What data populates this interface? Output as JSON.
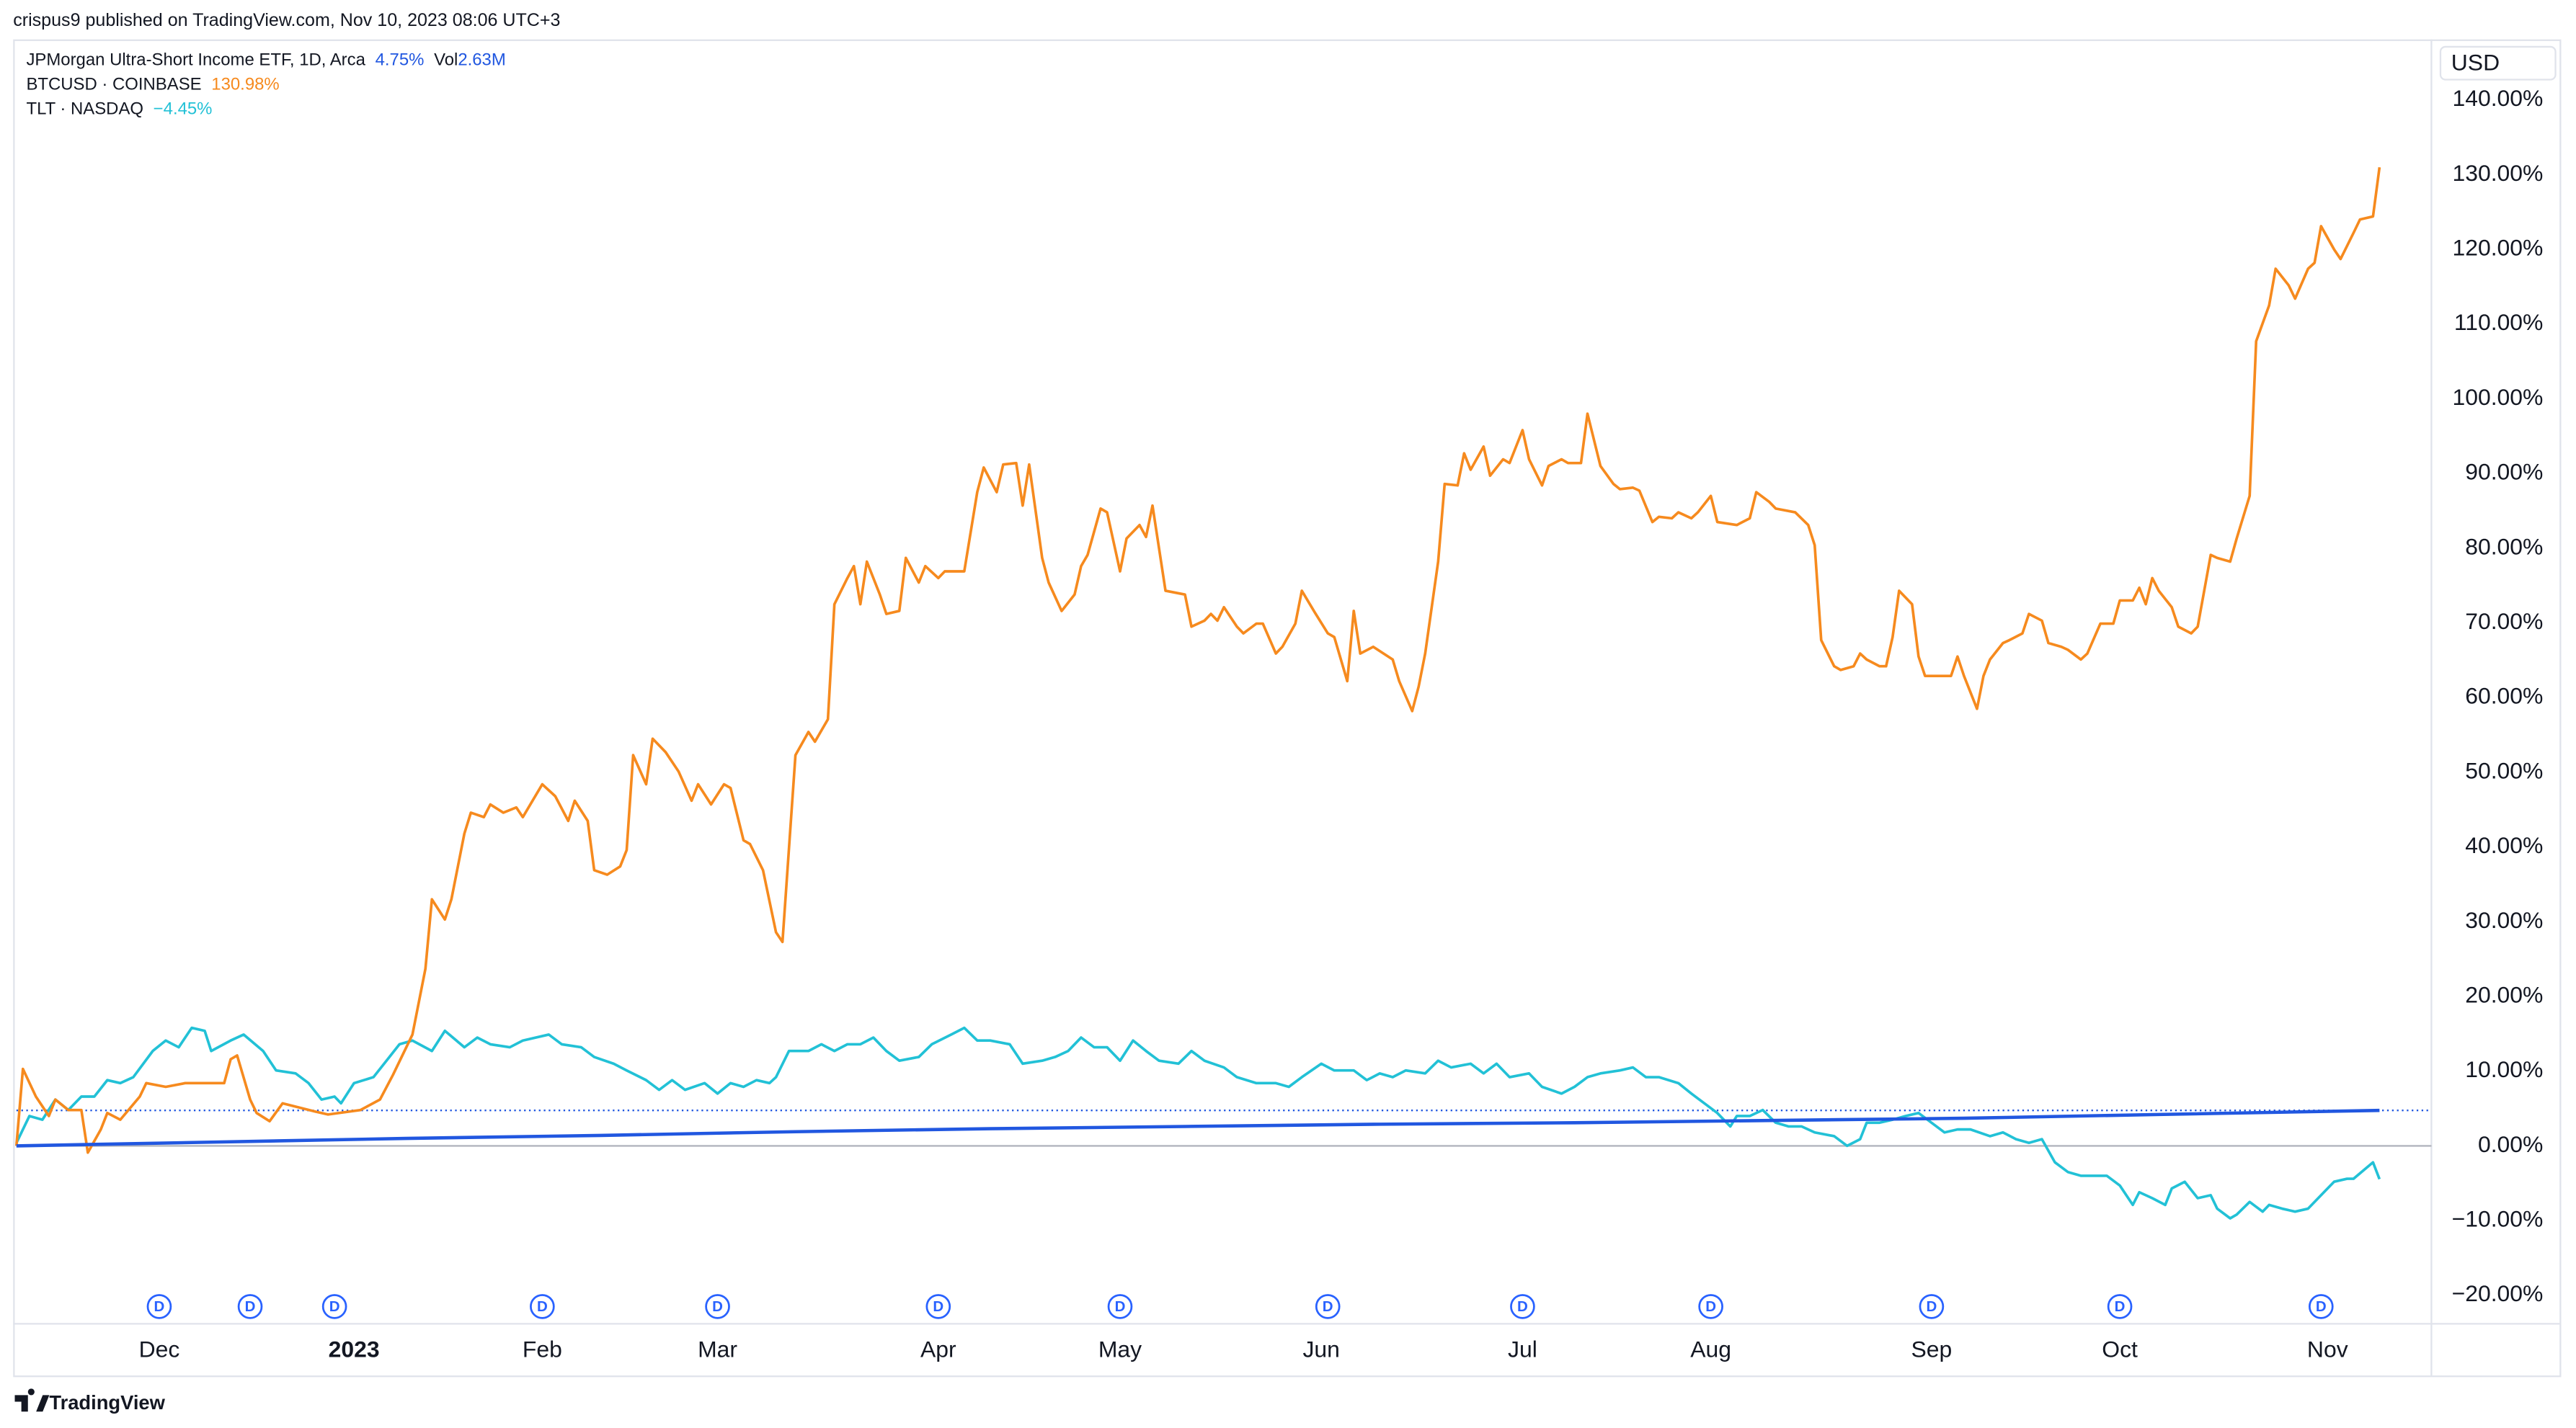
{
  "header": "crispus9 published on TradingView.com, Nov 10, 2023 08:06 UTC+3",
  "footer": "TradingView",
  "chart_data": {
    "type": "line",
    "currency": "USD",
    "grid": false,
    "baseline": 0,
    "xlim": [
      0,
      372
    ],
    "xticks": [
      {
        "value": 22,
        "label": "Dec"
      },
      {
        "value": 52,
        "label": "2023"
      },
      {
        "value": 81,
        "label": "Feb"
      },
      {
        "value": 108,
        "label": "Mar"
      },
      {
        "value": 142,
        "label": "Apr"
      },
      {
        "value": 170,
        "label": "May"
      },
      {
        "value": 201,
        "label": "Jun"
      },
      {
        "value": 232,
        "label": "Jul"
      },
      {
        "value": 261,
        "label": "Aug"
      },
      {
        "value": 295,
        "label": "Sep"
      },
      {
        "value": 324,
        "label": "Oct"
      },
      {
        "value": 356,
        "label": "Nov"
      }
    ],
    "ylim": [
      -23.7,
      148.1
    ],
    "yticks": [
      {
        "value": -20,
        "label": "−20.00%"
      },
      {
        "value": -10,
        "label": "−10.00%"
      },
      {
        "value": 0,
        "label": "0.00%"
      },
      {
        "value": 10,
        "label": "10.00%"
      },
      {
        "value": 20,
        "label": "20.00%"
      },
      {
        "value": 30,
        "label": "30.00%"
      },
      {
        "value": 40,
        "label": "40.00%"
      },
      {
        "value": 50,
        "label": "50.00%"
      },
      {
        "value": 60,
        "label": "60.00%"
      },
      {
        "value": 70,
        "label": "70.00%"
      },
      {
        "value": 80,
        "label": "80.00%"
      },
      {
        "value": 90,
        "label": "90.00%"
      },
      {
        "value": 100,
        "label": "100.00%"
      },
      {
        "value": 110,
        "label": "110.00%"
      },
      {
        "value": 120,
        "label": "120.00%"
      },
      {
        "value": 130,
        "label": "130.00%"
      },
      {
        "value": 140,
        "label": "140.00%"
      }
    ],
    "series": [
      {
        "name": "JPMorgan Ultra-Short Income ETF, 1D, Arca",
        "color": "#2157e0",
        "legend_value": "4.75%",
        "volume_label": "Vol",
        "volume": "2.63M",
        "x": [
          0,
          30,
          60,
          90,
          120,
          150,
          180,
          210,
          240,
          270,
          300,
          330,
          364
        ],
        "values": [
          0,
          0.5,
          1.0,
          1.4,
          1.9,
          2.3,
          2.6,
          2.9,
          3.1,
          3.4,
          3.7,
          4.2,
          4.75
        ]
      },
      {
        "name": "BTCUSD · COINBASE",
        "color": "#f68a1e",
        "legend_value": "130.98%",
        "x": [
          0,
          1,
          3,
          5,
          6,
          8,
          10,
          11,
          13,
          14,
          16,
          19,
          20,
          23,
          26,
          29,
          32,
          33,
          34,
          36,
          37,
          39,
          41,
          46,
          48,
          53,
          56,
          58,
          61,
          63,
          64,
          66,
          67,
          69,
          70,
          72,
          73,
          75,
          77,
          78,
          81,
          83,
          85,
          86,
          88,
          89,
          91,
          93,
          94,
          95,
          97,
          98,
          100,
          102,
          104,
          105,
          107,
          109,
          110,
          112,
          113,
          115,
          117,
          118,
          120,
          122,
          123,
          125,
          126,
          128,
          129,
          130,
          131,
          133,
          134,
          136,
          137,
          139,
          140,
          142,
          143,
          146,
          148,
          149,
          151,
          152,
          154,
          155,
          156,
          158,
          159,
          161,
          163,
          164,
          165,
          167,
          168,
          170,
          171,
          173,
          174,
          175,
          177,
          180,
          181,
          183,
          184,
          185,
          186,
          188,
          189,
          191,
          192,
          194,
          195,
          197,
          198,
          200,
          202,
          203,
          205,
          206,
          207,
          209,
          212,
          213,
          215,
          216,
          217,
          219,
          220,
          222,
          223,
          224,
          226,
          227,
          229,
          230,
          232,
          233,
          235,
          236,
          238,
          239,
          241,
          242,
          244,
          246,
          247,
          249,
          250,
          252,
          253,
          255,
          256,
          258,
          259,
          261,
          262,
          265,
          267,
          268,
          270,
          271,
          274,
          276,
          277,
          278,
          280,
          281,
          283,
          284,
          285,
          287,
          288,
          289,
          290,
          292,
          293,
          294,
          298,
          299,
          300,
          302,
          303,
          304,
          306,
          307,
          309,
          310,
          312,
          313,
          315,
          316,
          318,
          319,
          321,
          323,
          324,
          326,
          327,
          328,
          329,
          330,
          332,
          333,
          335,
          336,
          338,
          339,
          341,
          342,
          344,
          345,
          347,
          348,
          350,
          351,
          353,
          354,
          355,
          357,
          358,
          360,
          361,
          363,
          364
        ],
        "values": [
          0,
          10.3,
          6.6,
          4.0,
          6.2,
          4.8,
          4.8,
          -0.9,
          2.2,
          4.4,
          3.5,
          6.6,
          8.4,
          7.9,
          8.4,
          8.4,
          8.4,
          11.6,
          12.1,
          6.2,
          4.4,
          3.3,
          5.7,
          4.6,
          4.2,
          4.8,
          6.2,
          9.5,
          14.9,
          23.7,
          33.0,
          30.3,
          33.0,
          41.8,
          44.6,
          44.0,
          45.7,
          44.6,
          45.3,
          44.0,
          48.4,
          46.8,
          43.5,
          46.2,
          43.5,
          36.9,
          36.3,
          37.4,
          39.6,
          52.3,
          48.4,
          54.5,
          52.7,
          50.1,
          46.2,
          48.4,
          45.7,
          48.4,
          47.9,
          40.9,
          40.4,
          36.9,
          28.6,
          27.3,
          52.3,
          55.4,
          54.1,
          57.1,
          72.5,
          76.0,
          77.6,
          72.5,
          78.2,
          73.8,
          71.2,
          71.6,
          78.7,
          75.4,
          77.6,
          76.0,
          76.9,
          76.9,
          87.5,
          90.8,
          87.5,
          91.2,
          91.4,
          85.7,
          91.2,
          78.7,
          75.4,
          71.6,
          73.8,
          77.6,
          79.1,
          85.3,
          84.8,
          76.9,
          81.3,
          83.1,
          81.5,
          85.7,
          74.3,
          73.8,
          69.5,
          70.3,
          71.2,
          70.3,
          72.1,
          69.5,
          68.6,
          69.9,
          69.9,
          65.9,
          66.8,
          69.9,
          74.3,
          71.4,
          68.6,
          68.1,
          62.2,
          71.6,
          65.9,
          66.8,
          65.1,
          62.2,
          58.2,
          61.5,
          65.9,
          78.2,
          88.6,
          88.4,
          92.7,
          90.5,
          93.6,
          89.7,
          91.9,
          91.4,
          95.8,
          91.9,
          88.4,
          91.0,
          91.9,
          91.4,
          91.4,
          98.0,
          91.0,
          88.6,
          87.9,
          88.1,
          87.7,
          83.5,
          84.2,
          84.0,
          84.8,
          84.0,
          84.8,
          87.0,
          83.5,
          83.1,
          84.0,
          87.5,
          86.2,
          85.3,
          84.8,
          83.1,
          80.4,
          67.7,
          64.2,
          63.7,
          64.2,
          65.9,
          65.1,
          64.2,
          64.2,
          68.1,
          74.3,
          72.5,
          65.5,
          62.9,
          62.9,
          65.5,
          62.9,
          58.5,
          62.9,
          65.1,
          67.3,
          67.7,
          68.6,
          71.2,
          70.3,
          67.3,
          66.8,
          66.4,
          65.1,
          65.9,
          69.9,
          69.9,
          73.0,
          73.0,
          74.7,
          72.5,
          76.0,
          74.3,
          72.1,
          69.5,
          68.6,
          69.5,
          79.1,
          78.7,
          78.2,
          81.3,
          87.0,
          107.7,
          112.5,
          117.4,
          115.2,
          113.4,
          117.4,
          118.2,
          123.1,
          120.0,
          118.7,
          122.2,
          124.0,
          124.4,
          130.98
        ]
      },
      {
        "name": "TLT · NASDAQ",
        "color": "#22c1d6",
        "legend_value": "−4.45%",
        "x": [
          0,
          2,
          4,
          6,
          8,
          10,
          12,
          14,
          16,
          18,
          21,
          23,
          25,
          27,
          29,
          30,
          33,
          35,
          38,
          40,
          43,
          45,
          47,
          49,
          50,
          52,
          55,
          57,
          59,
          61,
          64,
          66,
          69,
          71,
          73,
          76,
          78,
          82,
          84,
          87,
          89,
          92,
          94,
          97,
          99,
          101,
          103,
          106,
          108,
          110,
          112,
          114,
          116,
          117,
          119,
          122,
          124,
          126,
          128,
          130,
          132,
          134,
          136,
          139,
          141,
          144,
          146,
          148,
          150,
          153,
          155,
          158,
          160,
          162,
          164,
          166,
          168,
          170,
          172,
          174,
          176,
          179,
          181,
          183,
          186,
          188,
          191,
          194,
          196,
          198,
          201,
          203,
          206,
          208,
          210,
          212,
          214,
          217,
          219,
          221,
          224,
          226,
          228,
          230,
          233,
          235,
          238,
          240,
          242,
          244,
          247,
          249,
          251,
          253,
          256,
          258,
          260,
          262,
          264,
          265,
          267,
          269,
          271,
          273,
          275,
          277,
          280,
          282,
          284,
          285,
          287,
          289,
          291,
          293,
          295,
          297,
          299,
          301,
          304,
          306,
          308,
          310,
          312,
          314,
          316,
          318,
          320,
          322,
          324,
          326,
          327,
          329,
          331,
          332,
          334,
          336,
          338,
          339,
          341,
          342,
          344,
          346,
          347,
          349,
          351,
          353,
          355,
          357,
          359,
          360,
          363,
          364
        ],
        "values": [
          0.4,
          4.0,
          3.5,
          6.2,
          4.8,
          6.6,
          6.6,
          8.8,
          8.4,
          9.2,
          12.7,
          14.1,
          13.2,
          15.8,
          15.4,
          12.7,
          14.1,
          14.9,
          12.7,
          10.1,
          9.7,
          8.4,
          6.2,
          6.6,
          5.7,
          8.4,
          9.2,
          11.4,
          13.6,
          14.1,
          12.7,
          15.4,
          13.2,
          14.5,
          13.6,
          13.2,
          14.1,
          14.9,
          13.6,
          13.2,
          11.9,
          11.0,
          10.1,
          8.8,
          7.5,
          8.8,
          7.5,
          8.4,
          7.0,
          8.4,
          7.9,
          8.8,
          8.4,
          9.2,
          12.7,
          12.7,
          13.6,
          12.7,
          13.6,
          13.6,
          14.5,
          12.7,
          11.4,
          11.9,
          13.6,
          14.9,
          15.8,
          14.1,
          14.1,
          13.6,
          11.0,
          11.4,
          11.9,
          12.7,
          14.5,
          13.2,
          13.2,
          11.4,
          14.1,
          12.7,
          11.4,
          11.0,
          12.7,
          11.4,
          10.5,
          9.2,
          8.4,
          8.4,
          7.9,
          9.2,
          11.0,
          10.1,
          10.1,
          8.8,
          9.7,
          9.2,
          10.1,
          9.7,
          11.4,
          10.5,
          11.0,
          9.7,
          11.0,
          9.2,
          9.7,
          7.9,
          7.0,
          7.9,
          9.2,
          9.7,
          10.1,
          10.5,
          9.2,
          9.2,
          8.4,
          7.0,
          5.7,
          4.4,
          2.6,
          4.0,
          4.0,
          4.8,
          3.1,
          2.6,
          2.6,
          1.8,
          1.3,
          0.0,
          0.9,
          3.1,
          3.1,
          3.5,
          4.0,
          4.4,
          3.1,
          1.8,
          2.2,
          2.2,
          1.3,
          1.8,
          0.9,
          0.4,
          0.9,
          -2.2,
          -3.5,
          -4.0,
          -4.0,
          -4.0,
          -5.3,
          -7.9,
          -6.2,
          -7.0,
          -7.9,
          -5.7,
          -4.8,
          -7.0,
          -6.6,
          -8.4,
          -9.7,
          -9.2,
          -7.5,
          -8.8,
          -7.9,
          -8.4,
          -8.8,
          -8.4,
          -6.6,
          -4.8,
          -4.4,
          -4.4,
          -2.2,
          -4.45
        ]
      }
    ],
    "dividends": {
      "label": "D",
      "x": [
        22,
        36,
        49,
        81,
        108,
        142,
        170,
        202,
        232,
        261,
        295,
        324,
        355
      ]
    }
  }
}
